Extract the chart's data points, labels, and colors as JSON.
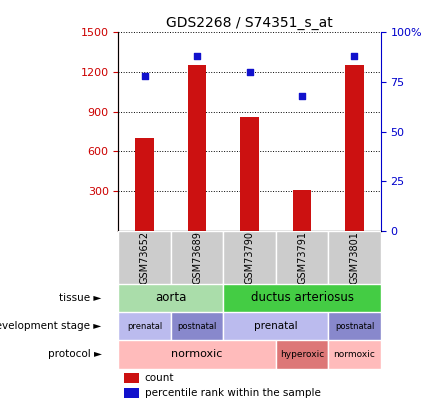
{
  "title": "GDS2268 / S74351_s_at",
  "samples": [
    "GSM73652",
    "GSM73689",
    "GSM73790",
    "GSM73791",
    "GSM73801"
  ],
  "counts": [
    700,
    1250,
    860,
    310,
    1250
  ],
  "percentile_ranks": [
    78,
    88,
    80,
    68,
    88
  ],
  "ylim_left": [
    0,
    1500
  ],
  "yticks_left": [
    300,
    600,
    900,
    1200,
    1500
  ],
  "ylim_right": [
    0,
    100
  ],
  "yticks_right": [
    0,
    25,
    50,
    75,
    100
  ],
  "bar_color": "#cc1111",
  "dot_color": "#1111cc",
  "tissue_groups": [
    {
      "label": "aorta",
      "start": 0,
      "end": 2,
      "color": "#aaddaa"
    },
    {
      "label": "ductus arteriosus",
      "start": 2,
      "end": 5,
      "color": "#44cc44"
    }
  ],
  "dev_stage_groups": [
    {
      "label": "prenatal",
      "start": 0,
      "end": 1,
      "color": "#bbbbee"
    },
    {
      "label": "postnatal",
      "start": 1,
      "end": 2,
      "color": "#8888cc"
    },
    {
      "label": "prenatal",
      "start": 2,
      "end": 4,
      "color": "#bbbbee"
    },
    {
      "label": "postnatal",
      "start": 4,
      "end": 5,
      "color": "#8888cc"
    }
  ],
  "protocol_groups": [
    {
      "label": "normoxic",
      "start": 0,
      "end": 3,
      "color": "#ffbbbb"
    },
    {
      "label": "hyperoxic",
      "start": 3,
      "end": 4,
      "color": "#dd7777"
    },
    {
      "label": "normoxic",
      "start": 4,
      "end": 5,
      "color": "#ffbbbb"
    }
  ],
  "row_labels": [
    "tissue",
    "development stage",
    "protocol"
  ],
  "left_axis_color": "#cc0000",
  "right_axis_color": "#0000cc",
  "sample_box_color": "#cccccc",
  "bar_width": 0.35
}
